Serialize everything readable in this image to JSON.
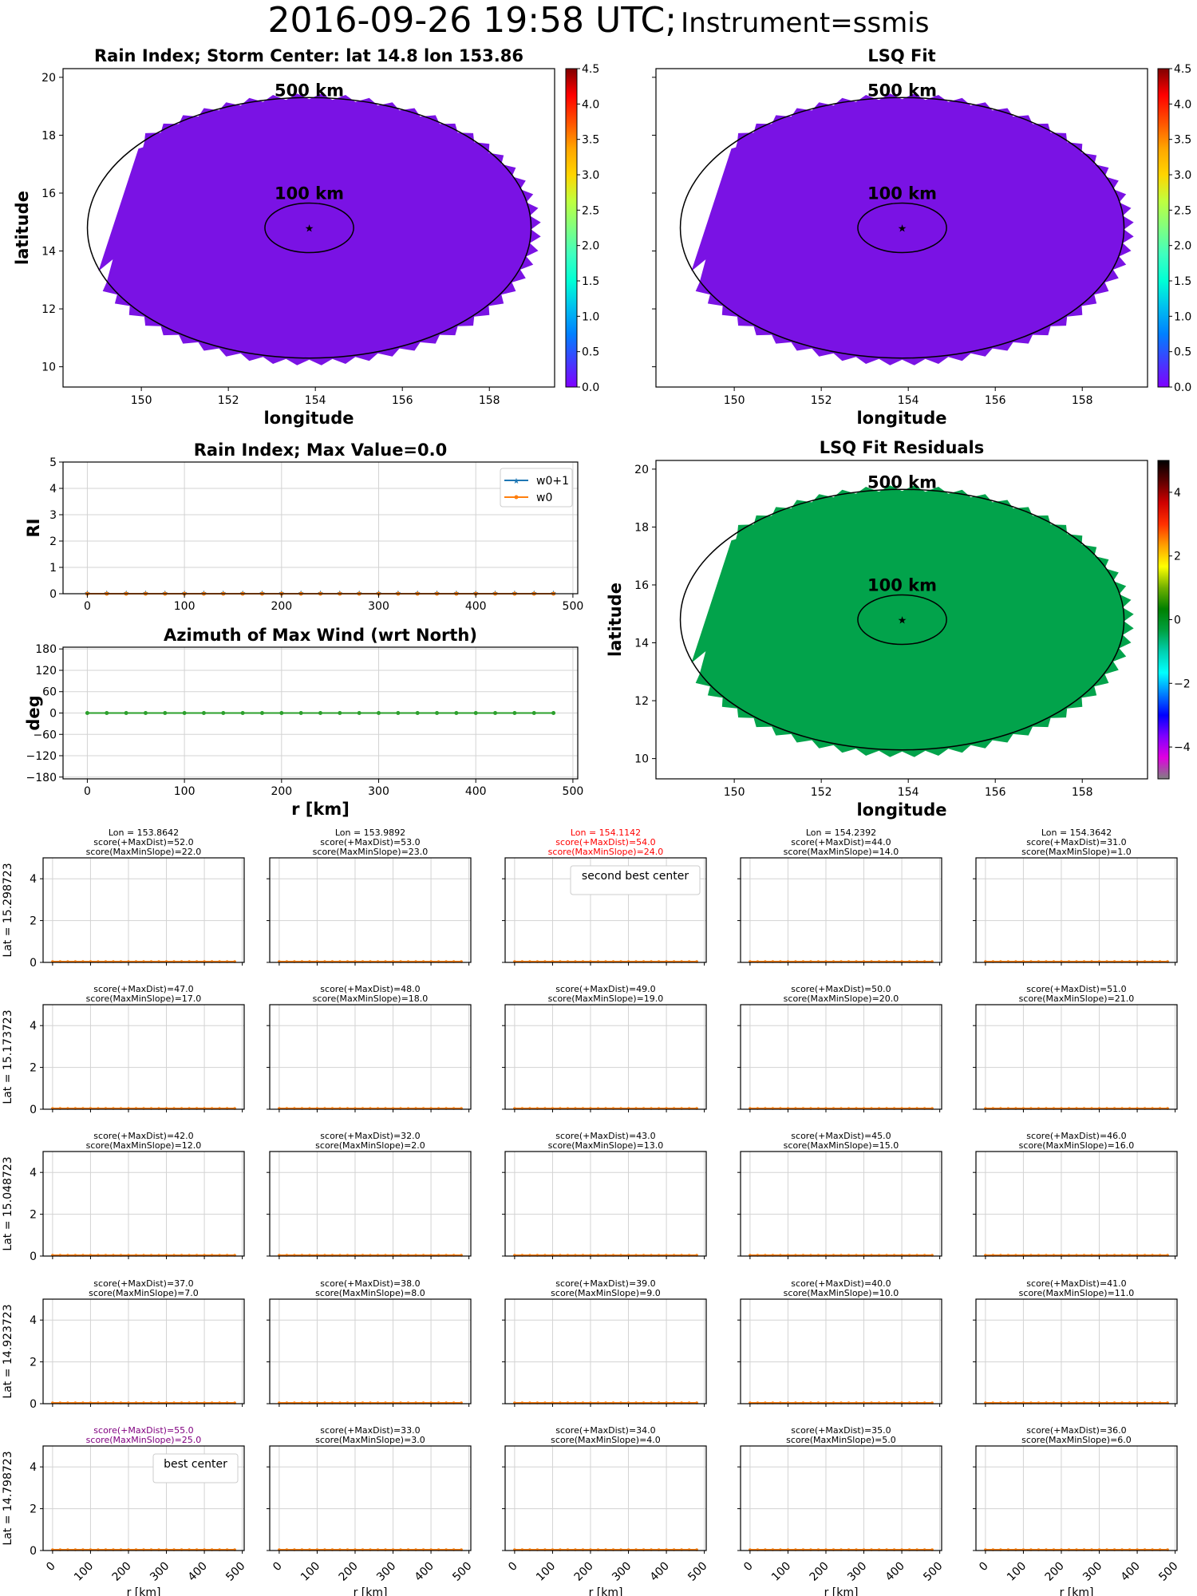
{
  "suptitle": {
    "main": "2016-09-26 19:58 UTC;",
    "instrument": "Instrument=ssmis"
  },
  "chart_data": [
    {
      "id": "rain_index_map",
      "type": "heatmap",
      "title": "Rain Index; Storm Center: lat 14.8 lon 153.86",
      "xlabel": "longitude",
      "ylabel": "latitude",
      "xlim": [
        148.2,
        159.5
      ],
      "ylim": [
        9.3,
        20.3
      ],
      "xticks": [
        150,
        152,
        154,
        156,
        158
      ],
      "yticks": [
        10,
        12,
        14,
        16,
        18,
        20
      ],
      "storm_center": {
        "lat": 14.8,
        "lon": 153.86
      },
      "rings": [
        {
          "label": "500 km",
          "radius_km": 500
        },
        {
          "label": "100 km",
          "radius_km": 100
        }
      ],
      "field_value": 0.0,
      "fill_color": "#7a12e4",
      "colorbar": {
        "min": 0.0,
        "max": 4.5,
        "ticks": [
          "0.0",
          "0.5",
          "1.0",
          "1.5",
          "2.0",
          "2.5",
          "3.0",
          "3.5",
          "4.0",
          "4.5"
        ],
        "cmap": "rainbow"
      }
    },
    {
      "id": "lsq_fit_map",
      "type": "heatmap",
      "title": "LSQ Fit",
      "xlabel": "longitude",
      "ylabel": "",
      "xlim": [
        148.2,
        159.5
      ],
      "ylim": [
        9.3,
        20.3
      ],
      "xticks": [
        150,
        152,
        154,
        156,
        158
      ],
      "yticks": [
        10,
        12,
        14,
        16,
        18,
        20
      ],
      "storm_center": {
        "lat": 14.8,
        "lon": 153.86
      },
      "rings": [
        {
          "label": "500 km",
          "radius_km": 500
        },
        {
          "label": "100 km",
          "radius_km": 100
        }
      ],
      "field_value": 0.0,
      "fill_color": "#7a12e4",
      "colorbar": {
        "min": 0.0,
        "max": 4.5,
        "ticks": [
          "0.0",
          "0.5",
          "1.0",
          "1.5",
          "2.0",
          "2.5",
          "3.0",
          "3.5",
          "4.0",
          "4.5"
        ],
        "cmap": "rainbow"
      }
    },
    {
      "id": "rain_index_profile",
      "type": "line",
      "title": "Rain Index; Max Value=0.0",
      "xlabel": "",
      "ylabel": "RI",
      "xlim": [
        -25,
        505
      ],
      "ylim": [
        0,
        5
      ],
      "xticks": [
        0,
        100,
        200,
        300,
        400,
        500
      ],
      "yticks": [
        0,
        1,
        2,
        3,
        4,
        5
      ],
      "grid": true,
      "legend": "top-right",
      "x": [
        0,
        20,
        40,
        60,
        80,
        100,
        120,
        140,
        160,
        180,
        200,
        220,
        240,
        260,
        280,
        300,
        320,
        340,
        360,
        380,
        400,
        420,
        440,
        460,
        480
      ],
      "series": [
        {
          "name": "w0+1",
          "color": "#1f77b4",
          "marker": "star",
          "values": [
            0,
            0,
            0,
            0,
            0,
            0,
            0,
            0,
            0,
            0,
            0,
            0,
            0,
            0,
            0,
            0,
            0,
            0,
            0,
            0,
            0,
            0,
            0,
            0,
            0
          ]
        },
        {
          "name": "w0",
          "color": "#ff7f0e",
          "marker": "dot",
          "values": [
            0,
            0,
            0,
            0,
            0,
            0,
            0,
            0,
            0,
            0,
            0,
            0,
            0,
            0,
            0,
            0,
            0,
            0,
            0,
            0,
            0,
            0,
            0,
            0,
            0
          ]
        }
      ]
    },
    {
      "id": "azimuth_profile",
      "type": "line",
      "title": "Azimuth of Max Wind (wrt North)",
      "xlabel": "r [km]",
      "ylabel": "deg",
      "xlim": [
        -25,
        505
      ],
      "ylim": [
        -185,
        185
      ],
      "xticks": [
        0,
        100,
        200,
        300,
        400,
        500
      ],
      "yticks": [
        180,
        120,
        60,
        0,
        -60,
        -120,
        -180
      ],
      "grid": true,
      "x": [
        0,
        20,
        40,
        60,
        80,
        100,
        120,
        140,
        160,
        180,
        200,
        220,
        240,
        260,
        280,
        300,
        320,
        340,
        360,
        380,
        400,
        420,
        440,
        460,
        480
      ],
      "series": [
        {
          "name": "azimuth",
          "color": "#2ca02c",
          "marker": "dot",
          "values": [
            0,
            0,
            0,
            0,
            0,
            0,
            0,
            0,
            0,
            0,
            0,
            0,
            0,
            0,
            0,
            0,
            0,
            0,
            0,
            0,
            0,
            0,
            0,
            0,
            0
          ]
        }
      ]
    },
    {
      "id": "lsq_residuals_map",
      "type": "heatmap",
      "title": "LSQ Fit Residuals",
      "xlabel": "longitude",
      "ylabel": "latitude",
      "xlim": [
        148.2,
        159.5
      ],
      "ylim": [
        9.3,
        20.3
      ],
      "xticks": [
        150,
        152,
        154,
        156,
        158
      ],
      "yticks": [
        10,
        12,
        14,
        16,
        18,
        20
      ],
      "storm_center": {
        "lat": 14.8,
        "lon": 153.86
      },
      "rings": [
        {
          "label": "500 km",
          "radius_km": 500
        },
        {
          "label": "100 km",
          "radius_km": 100
        }
      ],
      "field_value": 0.0,
      "fill_color": "#02a34b",
      "colorbar": {
        "min": -5,
        "max": 5,
        "ticks": [
          "4",
          "2",
          "0",
          "−2",
          "−4"
        ],
        "cmap": "nipy_spectral-like"
      }
    },
    {
      "id": "center_grid",
      "type": "line",
      "xlabel": "r [km]",
      "xticks": [
        0,
        100,
        200,
        300,
        400,
        500
      ],
      "yticks": [
        0,
        2,
        4
      ],
      "ylim": [
        0,
        5
      ],
      "xlim": [
        -25,
        505
      ],
      "row_labels": [
        "Lat = 15.298723",
        "Lat = 15.173723",
        "Lat = 15.048723",
        "Lat = 14.923723",
        "Lat = 14.798723"
      ],
      "col_lons": [
        "Lon = 153.8642",
        "Lon = 153.9892",
        "Lon = 154.1142",
        "Lon = 154.2392",
        "Lon = 154.3642"
      ],
      "highlight_colors": {
        "normal": "#000000",
        "second": "#ff0000",
        "best": "#800080"
      },
      "cells": [
        [
          {
            "maxdist": "score(+MaxDist)=52.0",
            "slope": "score(MaxMinSlope)=22.0",
            "mark": "normal"
          },
          {
            "maxdist": "score(+MaxDist)=53.0",
            "slope": "score(MaxMinSlope)=23.0",
            "mark": "normal"
          },
          {
            "maxdist": "score(+MaxDist)=54.0",
            "slope": "score(MaxMinSlope)=24.0",
            "mark": "second",
            "legend": "second best center"
          },
          {
            "maxdist": "score(+MaxDist)=44.0",
            "slope": "score(MaxMinSlope)=14.0",
            "mark": "normal"
          },
          {
            "maxdist": "score(+MaxDist)=31.0",
            "slope": "score(MaxMinSlope)=1.0",
            "mark": "normal"
          }
        ],
        [
          {
            "maxdist": "score(+MaxDist)=47.0",
            "slope": "score(MaxMinSlope)=17.0",
            "mark": "normal"
          },
          {
            "maxdist": "score(+MaxDist)=48.0",
            "slope": "score(MaxMinSlope)=18.0",
            "mark": "normal"
          },
          {
            "maxdist": "score(+MaxDist)=49.0",
            "slope": "score(MaxMinSlope)=19.0",
            "mark": "normal"
          },
          {
            "maxdist": "score(+MaxDist)=50.0",
            "slope": "score(MaxMinSlope)=20.0",
            "mark": "normal"
          },
          {
            "maxdist": "score(+MaxDist)=51.0",
            "slope": "score(MaxMinSlope)=21.0",
            "mark": "normal"
          }
        ],
        [
          {
            "maxdist": "score(+MaxDist)=42.0",
            "slope": "score(MaxMinSlope)=12.0",
            "mark": "normal"
          },
          {
            "maxdist": "score(+MaxDist)=32.0",
            "slope": "score(MaxMinSlope)=2.0",
            "mark": "normal"
          },
          {
            "maxdist": "score(+MaxDist)=43.0",
            "slope": "score(MaxMinSlope)=13.0",
            "mark": "normal"
          },
          {
            "maxdist": "score(+MaxDist)=45.0",
            "slope": "score(MaxMinSlope)=15.0",
            "mark": "normal"
          },
          {
            "maxdist": "score(+MaxDist)=46.0",
            "slope": "score(MaxMinSlope)=16.0",
            "mark": "normal"
          }
        ],
        [
          {
            "maxdist": "score(+MaxDist)=37.0",
            "slope": "score(MaxMinSlope)=7.0",
            "mark": "normal"
          },
          {
            "maxdist": "score(+MaxDist)=38.0",
            "slope": "score(MaxMinSlope)=8.0",
            "mark": "normal"
          },
          {
            "maxdist": "score(+MaxDist)=39.0",
            "slope": "score(MaxMinSlope)=9.0",
            "mark": "normal"
          },
          {
            "maxdist": "score(+MaxDist)=40.0",
            "slope": "score(MaxMinSlope)=10.0",
            "mark": "normal"
          },
          {
            "maxdist": "score(+MaxDist)=41.0",
            "slope": "score(MaxMinSlope)=11.0",
            "mark": "normal"
          }
        ],
        [
          {
            "maxdist": "score(+MaxDist)=55.0",
            "slope": "score(MaxMinSlope)=25.0",
            "mark": "best",
            "legend": "best center"
          },
          {
            "maxdist": "score(+MaxDist)=33.0",
            "slope": "score(MaxMinSlope)=3.0",
            "mark": "normal"
          },
          {
            "maxdist": "score(+MaxDist)=34.0",
            "slope": "score(MaxMinSlope)=4.0",
            "mark": "normal"
          },
          {
            "maxdist": "score(+MaxDist)=35.0",
            "slope": "score(MaxMinSlope)=5.0",
            "mark": "normal"
          },
          {
            "maxdist": "score(+MaxDist)=36.0",
            "slope": "score(MaxMinSlope)=6.0",
            "mark": "normal"
          }
        ]
      ],
      "series_values": [
        0,
        0,
        0,
        0,
        0,
        0,
        0,
        0,
        0,
        0,
        0,
        0,
        0,
        0,
        0,
        0,
        0,
        0,
        0,
        0,
        0,
        0,
        0,
        0,
        0
      ],
      "series_colors": {
        "w0+1": "#1f77b4",
        "w0": "#ff7f0e"
      }
    }
  ]
}
